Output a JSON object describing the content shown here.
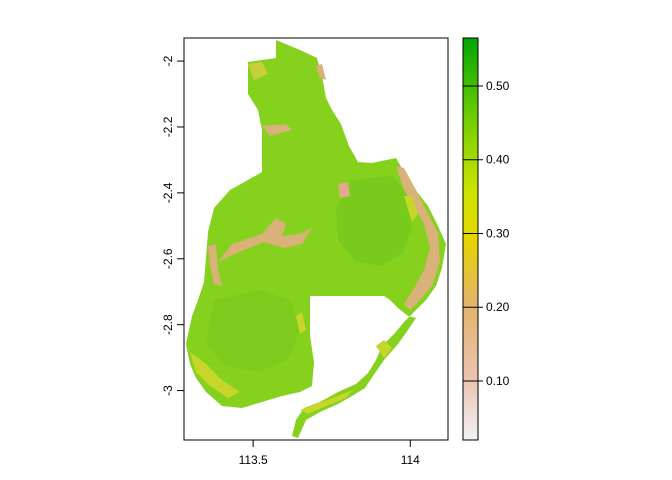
{
  "chart_data": {
    "type": "heatmap",
    "title": "",
    "xlabel": "",
    "ylabel": "",
    "xlim": [
      113.28,
      114.12
    ],
    "ylim": [
      -3.15,
      -1.93
    ],
    "x_ticks": [
      {
        "value": 113.5,
        "label": "113.5"
      },
      {
        "value": 114.0,
        "label": "114"
      }
    ],
    "y_ticks": [
      {
        "value": -2.0,
        "label": "-2"
      },
      {
        "value": -2.2,
        "label": "-2.2"
      },
      {
        "value": -2.4,
        "label": "-2.4"
      },
      {
        "value": -2.6,
        "label": "-2.6"
      },
      {
        "value": -2.8,
        "label": "-2.8"
      },
      {
        "value": -3.0,
        "label": "-3"
      }
    ],
    "legend": {
      "placement": "right",
      "range": [
        0.02,
        0.565
      ],
      "ticks": [
        {
          "value": 0.1,
          "label": "0.10"
        },
        {
          "value": 0.2,
          "label": "0.20"
        },
        {
          "value": 0.3,
          "label": "0.30"
        },
        {
          "value": 0.4,
          "label": "0.40"
        },
        {
          "value": 0.5,
          "label": "0.50"
        }
      ],
      "colors": [
        "#f2f2f2",
        "#ebb98e",
        "#e6e600",
        "#9ed800",
        "#00a600"
      ]
    },
    "colors": {
      "region_fill": "#86d11e",
      "region_dark": "#6ec51a",
      "low_value_patch": "#d8b278",
      "mid_value_patch": "#c7d62a"
    },
    "grid": false
  }
}
